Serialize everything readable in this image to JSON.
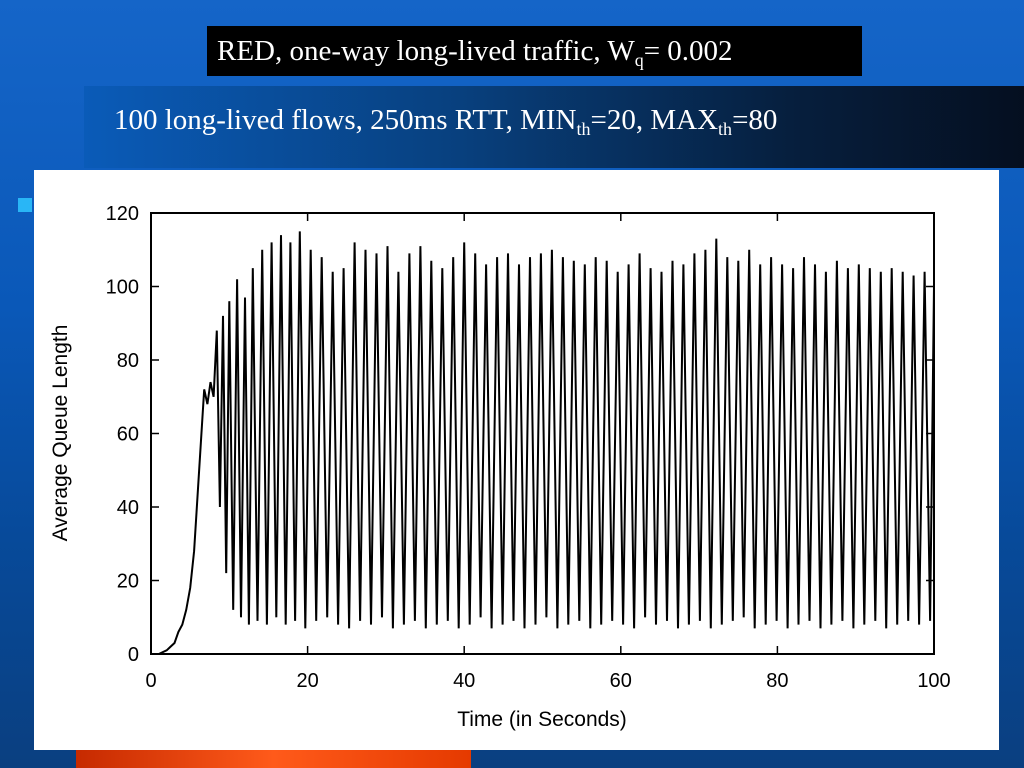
{
  "slide": {
    "title_main": "RED, one-way long-lived traffic, W",
    "title_sub": "q",
    "title_tail": "= 0.002",
    "subtitle_a": "100 long-lived flows, 250ms RTT, MIN",
    "subtitle_sub1": "th",
    "subtitle_b": "=20, MAX",
    "subtitle_sub2": "th",
    "subtitle_c": "=80"
  },
  "chart_data": {
    "type": "line",
    "xlabel": "Time (in Seconds)",
    "ylabel": "Average Queue Length",
    "xlim": [
      0,
      100
    ],
    "ylim": [
      0,
      120
    ],
    "xticks": [
      0,
      20,
      40,
      60,
      80,
      100
    ],
    "yticks": [
      0,
      20,
      40,
      60,
      80,
      100,
      120
    ],
    "grid": false,
    "series": [
      {
        "color": "#000000",
        "x": [
          0,
          1,
          2,
          2.5,
          3,
          3.5,
          4,
          4.5,
          5,
          5.5,
          6,
          6.5,
          6.8,
          7.2,
          7.6,
          8,
          8.4,
          8.8,
          9.2,
          9.6,
          10,
          10.5,
          11,
          11.5,
          12,
          12.5,
          13,
          13.6,
          14.2,
          14.8,
          15.4,
          16,
          16.6,
          17.2,
          17.8,
          18.4,
          19,
          19.7,
          20.4,
          21.1,
          21.8,
          22.5,
          23.2,
          23.9,
          24.6,
          25.3,
          26,
          26.7,
          27.4,
          28.1,
          28.8,
          29.5,
          30.2,
          30.9,
          31.6,
          32.3,
          33,
          33.7,
          34.4,
          35.1,
          35.8,
          36.5,
          37.2,
          37.9,
          38.6,
          39.3,
          40,
          40.7,
          41.4,
          42.1,
          42.8,
          43.5,
          44.2,
          44.9,
          45.6,
          46.3,
          47,
          47.7,
          48.4,
          49.1,
          49.8,
          50.5,
          51.2,
          51.9,
          52.6,
          53.3,
          54,
          54.7,
          55.4,
          56.1,
          56.8,
          57.5,
          58.2,
          58.9,
          59.6,
          60.3,
          61,
          61.7,
          62.4,
          63.1,
          63.8,
          64.5,
          65.2,
          65.9,
          66.6,
          67.3,
          68,
          68.7,
          69.4,
          70.1,
          70.8,
          71.5,
          72.2,
          72.9,
          73.6,
          74.3,
          75,
          75.7,
          76.4,
          77.1,
          77.8,
          78.5,
          79.2,
          79.9,
          80.6,
          81.3,
          82,
          82.7,
          83.4,
          84.1,
          84.8,
          85.5,
          86.2,
          86.9,
          87.6,
          88.3,
          89,
          89.7,
          90.4,
          91.1,
          91.8,
          92.5,
          93.2,
          93.9,
          94.6,
          95.3,
          96,
          96.7,
          97.4,
          98.1,
          98.8,
          99.5,
          100
        ],
        "y": [
          0,
          0,
          1,
          2,
          3,
          6,
          8,
          12,
          18,
          28,
          45,
          62,
          72,
          68,
          74,
          70,
          88,
          40,
          92,
          22,
          96,
          12,
          102,
          10,
          97,
          8,
          105,
          9,
          110,
          8,
          112,
          10,
          114,
          8,
          112,
          9,
          115,
          7,
          110,
          9,
          108,
          10,
          104,
          8,
          105,
          7,
          112,
          9,
          110,
          8,
          109,
          10,
          111,
          7,
          104,
          8,
          109,
          9,
          111,
          7,
          107,
          8,
          105,
          9,
          108,
          7,
          112,
          8,
          109,
          10,
          106,
          7,
          108,
          8,
          109,
          9,
          106,
          7,
          108,
          8,
          109,
          10,
          110,
          7,
          108,
          8,
          107,
          9,
          106,
          7,
          108,
          8,
          107,
          9,
          104,
          8,
          106,
          7,
          109,
          10,
          105,
          8,
          104,
          9,
          107,
          7,
          106,
          8,
          109,
          9,
          110,
          7,
          113,
          8,
          108,
          9,
          107,
          10,
          110,
          7,
          106,
          8,
          108,
          9,
          106,
          7,
          105,
          8,
          108,
          9,
          106,
          7,
          104,
          8,
          107,
          9,
          105,
          7,
          106,
          8,
          105,
          9,
          104,
          7,
          105,
          8,
          104,
          9,
          103,
          8,
          104,
          9,
          100
        ]
      }
    ]
  }
}
